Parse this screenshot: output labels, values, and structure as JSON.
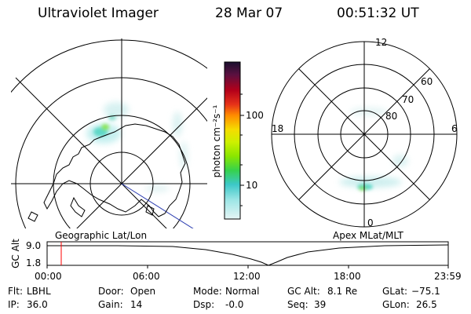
{
  "header": {
    "instrument": "Ultraviolet Imager",
    "date": "28 Mar 07",
    "time": "00:51:32 UT"
  },
  "left_map": {
    "label": "Geographic Lat/Lon"
  },
  "colorbar": {
    "unit_label": "photon cm⁻²s⁻¹",
    "ticks": [
      "100",
      "10"
    ],
    "scale": "log",
    "colors": [
      "#1a0f2e",
      "#5a1040",
      "#b3001a",
      "#e63219",
      "#ff8c00",
      "#f5dc00",
      "#cdf000",
      "#8ae600",
      "#36d24c",
      "#3cc8c8",
      "#9ee6e6",
      "#e6f5f5"
    ]
  },
  "right_map": {
    "label": "Apex  MLat/MLT",
    "mlt_labels": [
      "12",
      "18",
      "6",
      "0"
    ],
    "lat_labels": [
      "60",
      "70",
      "80"
    ]
  },
  "timeline": {
    "ylabel": "GC Alt",
    "y_ticks": [
      "9.0",
      "1.8"
    ],
    "x_ticks": [
      "00:00",
      "06:00",
      "12:00",
      "18:00",
      "23:59"
    ],
    "marker_time": "00:51:32",
    "marker_color": "#ff0000"
  },
  "info": {
    "flt_label": "Flt:",
    "flt_value": "LBHL",
    "ip_label": "IP:",
    "ip_value": "36.0",
    "door_label": "Door:",
    "door_value": "Open",
    "gain_label": "Gain:",
    "gain_value": "14",
    "mode_label": "Mode:",
    "mode_value": "Normal",
    "dsp_label": "Dsp:",
    "dsp_value": "-0.0",
    "gcalt_label": "GC Alt:",
    "gcalt_value": "8.1 Re",
    "seq_label": "Seq:",
    "seq_value": "39",
    "glat_label": "GLat:",
    "glat_value": "−75.1",
    "glon_label": "GLon:",
    "glon_value": "26.5"
  }
}
